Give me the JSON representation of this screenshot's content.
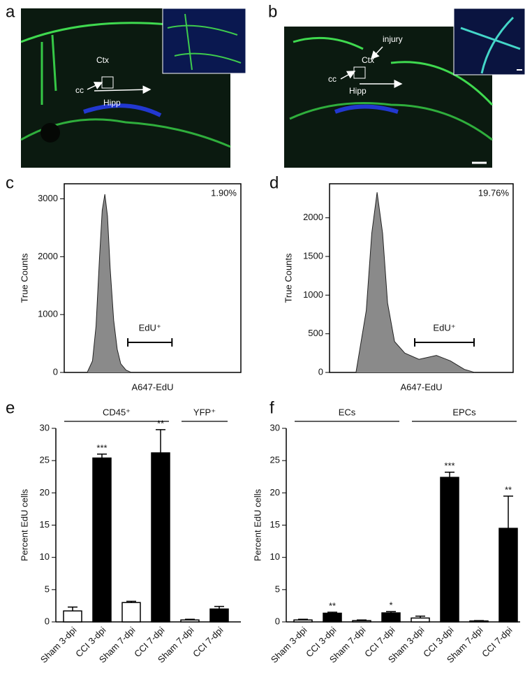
{
  "images": [
    {
      "panel": "a",
      "labels": [
        "Ctx",
        "cc",
        "Hipp"
      ]
    },
    {
      "panel": "b",
      "labels": [
        "Ctx",
        "cc",
        "Hipp",
        "injury"
      ]
    }
  ],
  "chart_data": [
    {
      "type": "area",
      "panel": "c",
      "ylabel": "True Counts",
      "xlabel": "A647-EdU",
      "annotation": "1.90%",
      "x": [
        13,
        16,
        18,
        20,
        21.5,
        23,
        24.5,
        26,
        28,
        30,
        32,
        35,
        38
      ],
      "values": [
        0,
        200,
        800,
        2000,
        2800,
        3080,
        2700,
        1800,
        900,
        400,
        150,
        40,
        0
      ],
      "color": "#8a8a8a",
      "xlim": [
        0,
        100
      ],
      "ylim": [
        0,
        3260
      ],
      "yticks": [
        0,
        1000,
        2000,
        3000
      ],
      "gate": {
        "label": "EdU⁺",
        "range": [
          36,
          61
        ]
      }
    },
    {
      "type": "area",
      "panel": "d",
      "ylabel": "True Counts",
      "xlabel": "A647-EdU",
      "annotation": "19.76%",
      "x": [
        14.4,
        20,
        23,
        25.9,
        28.9,
        31.6,
        35.4,
        41,
        48.7,
        58.2,
        65.8,
        73.4,
        79
      ],
      "values": [
        0,
        800,
        1800,
        2330,
        1800,
        900,
        400,
        250,
        170,
        220,
        150,
        40,
        0
      ],
      "color": "#8a8a8a",
      "xlim": [
        0,
        100
      ],
      "ylim": [
        0,
        2440
      ],
      "yticks": [
        0,
        500,
        1000,
        1500,
        2000
      ],
      "gate": {
        "label": "EdU⁺",
        "range": [
          46.4,
          78.7
        ]
      }
    },
    {
      "type": "bar",
      "panel": "e",
      "ylabel": "Percent EdU cells",
      "ylim": [
        0,
        30
      ],
      "yticks": [
        0,
        5,
        10,
        15,
        20,
        25,
        30
      ],
      "groups": [
        {
          "name": "CD45⁺",
          "categories": [
            "Sham 3-dpi",
            "CCI 3-dpi",
            "Sham 7-dpi",
            "CCI 7-dpi"
          ],
          "values": [
            1.7,
            25.4,
            3.0,
            26.2
          ],
          "errors": [
            0.6,
            0.6,
            0.2,
            3.6
          ],
          "colors": [
            "#ffffff",
            "#000000",
            "#ffffff",
            "#000000"
          ],
          "significance": [
            null,
            "***",
            null,
            "**"
          ]
        },
        {
          "name": "YFP⁺",
          "categories": [
            "Sham 7-dpi",
            "CCI 7-dpi"
          ],
          "values": [
            0.3,
            2.0
          ],
          "errors": [
            0.1,
            0.4
          ],
          "colors": [
            "#ffffff",
            "#000000"
          ],
          "significance": [
            null,
            null
          ]
        }
      ]
    },
    {
      "type": "bar",
      "panel": "f",
      "ylabel": "Percent EdU cells",
      "ylim": [
        0,
        30
      ],
      "yticks": [
        0,
        5,
        10,
        15,
        20,
        25,
        30
      ],
      "groups": [
        {
          "name": "ECs",
          "categories": [
            "Sham 3-dpi",
            "CCI 3-dpi",
            "Sham 7-dpi",
            "CCI 7-dpi"
          ],
          "values": [
            0.3,
            1.35,
            0.2,
            1.4
          ],
          "errors": [
            0.1,
            0.15,
            0.1,
            0.2
          ],
          "colors": [
            "#ffffff",
            "#000000",
            "#ffffff",
            "#000000"
          ],
          "significance": [
            null,
            "**",
            null,
            "*"
          ]
        },
        {
          "name": "EPCs",
          "categories": [
            "Sham 3-dpi",
            "CCI 3-dpi",
            "Sham 7-dpi",
            "CCI 7-dpi"
          ],
          "values": [
            0.6,
            22.4,
            0.15,
            14.5
          ],
          "errors": [
            0.3,
            0.8,
            0.05,
            5.0
          ],
          "colors": [
            "#ffffff",
            "#000000",
            "#ffffff",
            "#000000"
          ],
          "significance": [
            null,
            "***",
            null,
            "**"
          ]
        }
      ]
    }
  ]
}
